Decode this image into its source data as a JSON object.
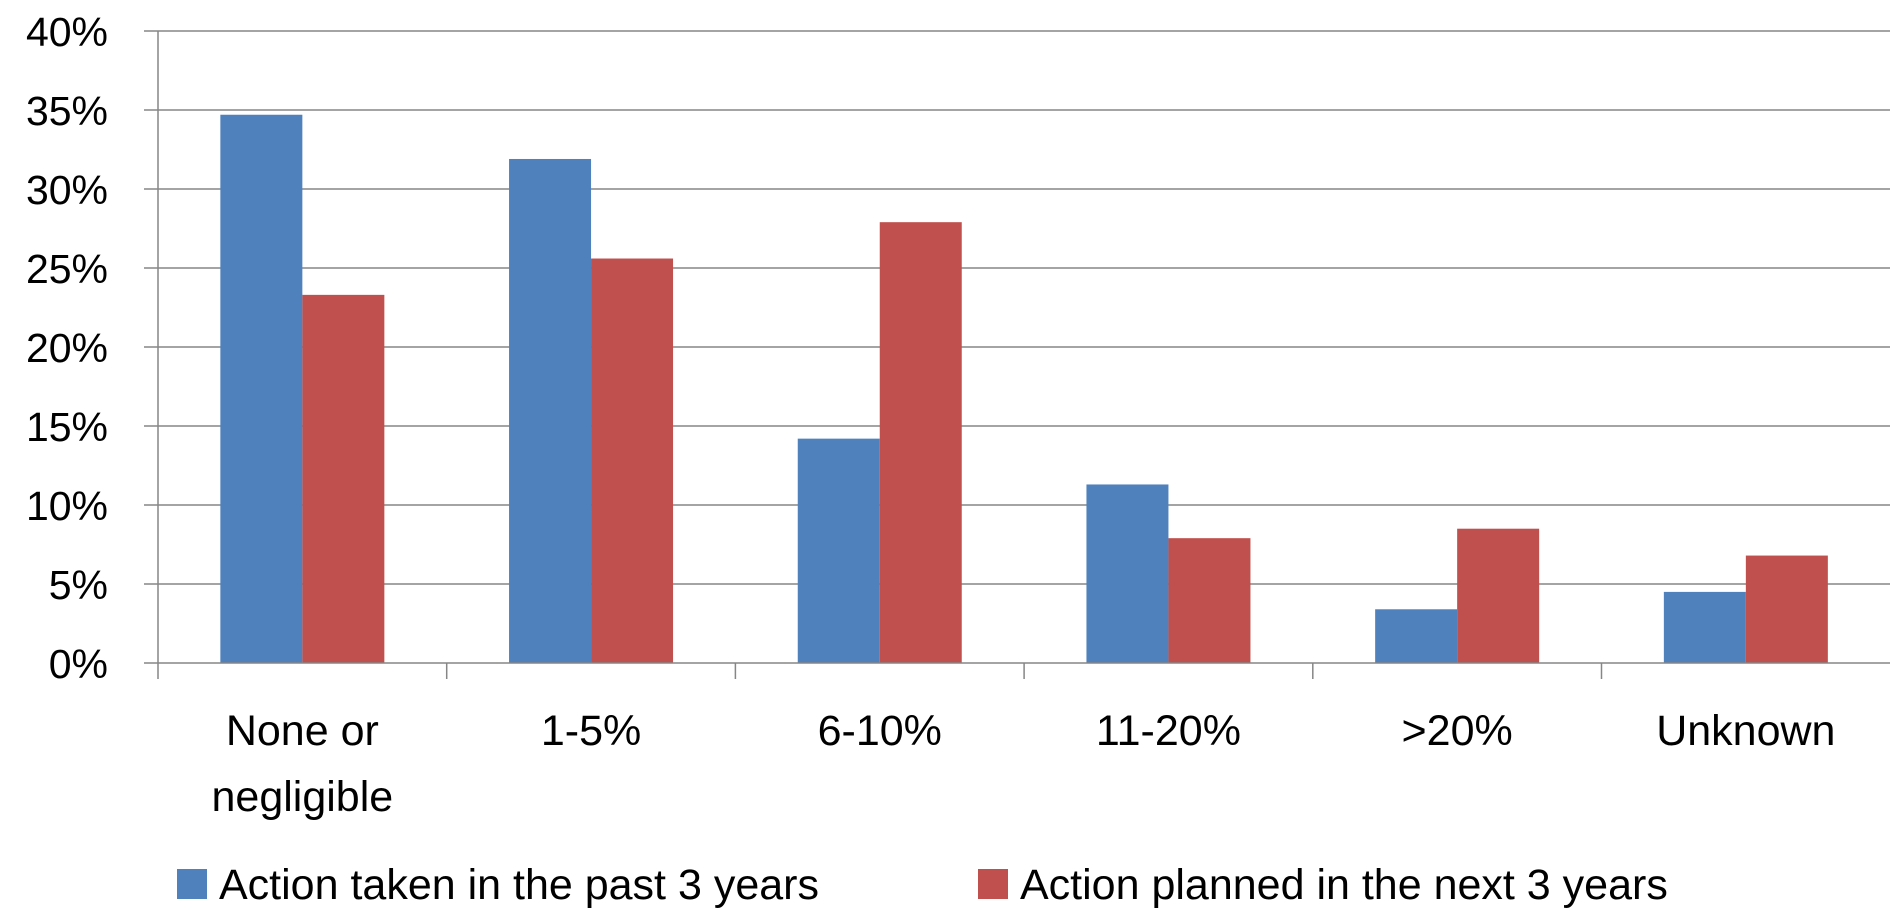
{
  "chart_data": {
    "type": "bar",
    "title": "",
    "xlabel": "",
    "ylabel": "",
    "ylim": [
      0,
      0.4
    ],
    "y_ticks": [
      0,
      0.05,
      0.1,
      0.15,
      0.2,
      0.25,
      0.3,
      0.35,
      0.4
    ],
    "y_tick_labels": [
      "0%",
      "5%",
      "10%",
      "15%",
      "20%",
      "25%",
      "30%",
      "35%",
      "40%"
    ],
    "grid": true,
    "legend_position": "bottom",
    "categories": [
      [
        "None or",
        "negligible"
      ],
      [
        "1-5%"
      ],
      [
        "6-10%"
      ],
      [
        "11-20%"
      ],
      [
        ">20%"
      ],
      [
        "Unknown"
      ]
    ],
    "series": [
      {
        "name": "Action taken in the past 3 years",
        "color": "#4F81BD",
        "values": [
          0.347,
          0.319,
          0.142,
          0.113,
          0.034,
          0.045
        ]
      },
      {
        "name": "Action planned in the next 3 years",
        "color": "#C0504D",
        "values": [
          0.233,
          0.256,
          0.279,
          0.079,
          0.085,
          0.068
        ]
      }
    ]
  }
}
